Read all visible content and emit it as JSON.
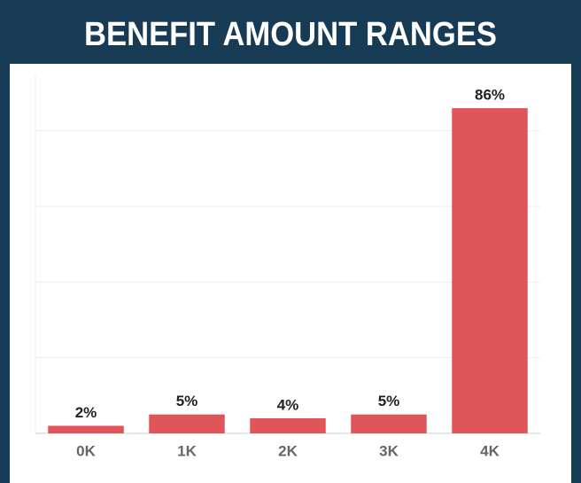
{
  "chart_data": {
    "type": "bar",
    "title": "BENEFIT AMOUNT RANGES",
    "categories": [
      "0K",
      "1K",
      "2K",
      "3K",
      "4K"
    ],
    "values": [
      2,
      5,
      4,
      5,
      86
    ],
    "value_labels": [
      "2%",
      "5%",
      "4%",
      "5%",
      "86%"
    ],
    "color": "#e0555a",
    "ylim": [
      0,
      90
    ],
    "yticks": [
      0,
      20,
      40,
      60,
      80
    ],
    "grid": true
  }
}
